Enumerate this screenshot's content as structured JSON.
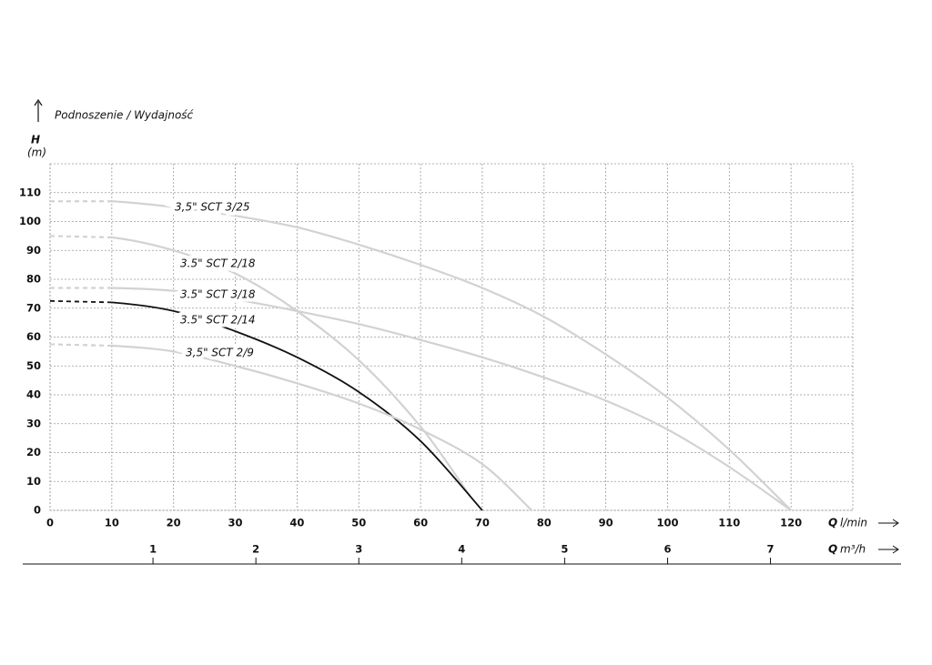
{
  "chart_data": {
    "type": "line",
    "title": "Podnoszenie / Wydajność",
    "y_label": {
      "symbol": "H",
      "unit": "(m)"
    },
    "x_label": {
      "symbol": "Q",
      "unit": "l/min"
    },
    "x2_label": {
      "symbol": "Q",
      "unit": "m³/h"
    },
    "xlim": [
      0,
      130
    ],
    "xticks": [
      0,
      10,
      20,
      30,
      40,
      50,
      60,
      70,
      80,
      90,
      100,
      110,
      120
    ],
    "ylim": [
      0,
      120
    ],
    "yticks": [
      0,
      10,
      20,
      30,
      40,
      50,
      60,
      70,
      80,
      90,
      100,
      110
    ],
    "x2lim": [
      0,
      7.8
    ],
    "x2ticks": [
      1,
      2,
      3,
      4,
      5,
      6,
      7
    ],
    "grid": true,
    "series": [
      {
        "name": "3,5\" SCT 3/25",
        "color": "#d2d2d2",
        "x": [
          0,
          10,
          20,
          30,
          40,
          50,
          60,
          70,
          80,
          90,
          100,
          110,
          120
        ],
        "values": [
          107,
          107,
          105,
          102,
          98,
          92,
          85,
          77,
          67,
          54,
          39,
          21,
          0
        ]
      },
      {
        "name": "3.5\" SCT 2/18",
        "color": "#d2d2d2",
        "x": [
          0,
          10,
          20,
          30,
          40,
          50,
          60,
          68
        ],
        "values": [
          95,
          94.5,
          90,
          82,
          69,
          52,
          29,
          5
        ]
      },
      {
        "name": "3.5\" SCT 3/18",
        "color": "#d2d2d2",
        "x": [
          0,
          10,
          20,
          30,
          40,
          50,
          60,
          70,
          80,
          90,
          100,
          110,
          120
        ],
        "values": [
          77,
          77,
          76,
          73,
          69,
          64.5,
          59,
          53,
          46,
          38,
          28,
          15,
          0
        ]
      },
      {
        "name": "3.5\" SCT 2/14",
        "color": "#111111",
        "x": [
          0,
          10,
          20,
          30,
          40,
          50,
          60,
          70
        ],
        "values": [
          72.5,
          72,
          69,
          62,
          53,
          41,
          24,
          0
        ]
      },
      {
        "name": "3,5\" SCT 2/9",
        "color": "#d2d2d2",
        "x": [
          0,
          10,
          20,
          30,
          40,
          50,
          60,
          70,
          78
        ],
        "values": [
          57.5,
          57,
          55,
          50,
          44,
          37,
          28,
          16,
          0
        ]
      }
    ]
  }
}
